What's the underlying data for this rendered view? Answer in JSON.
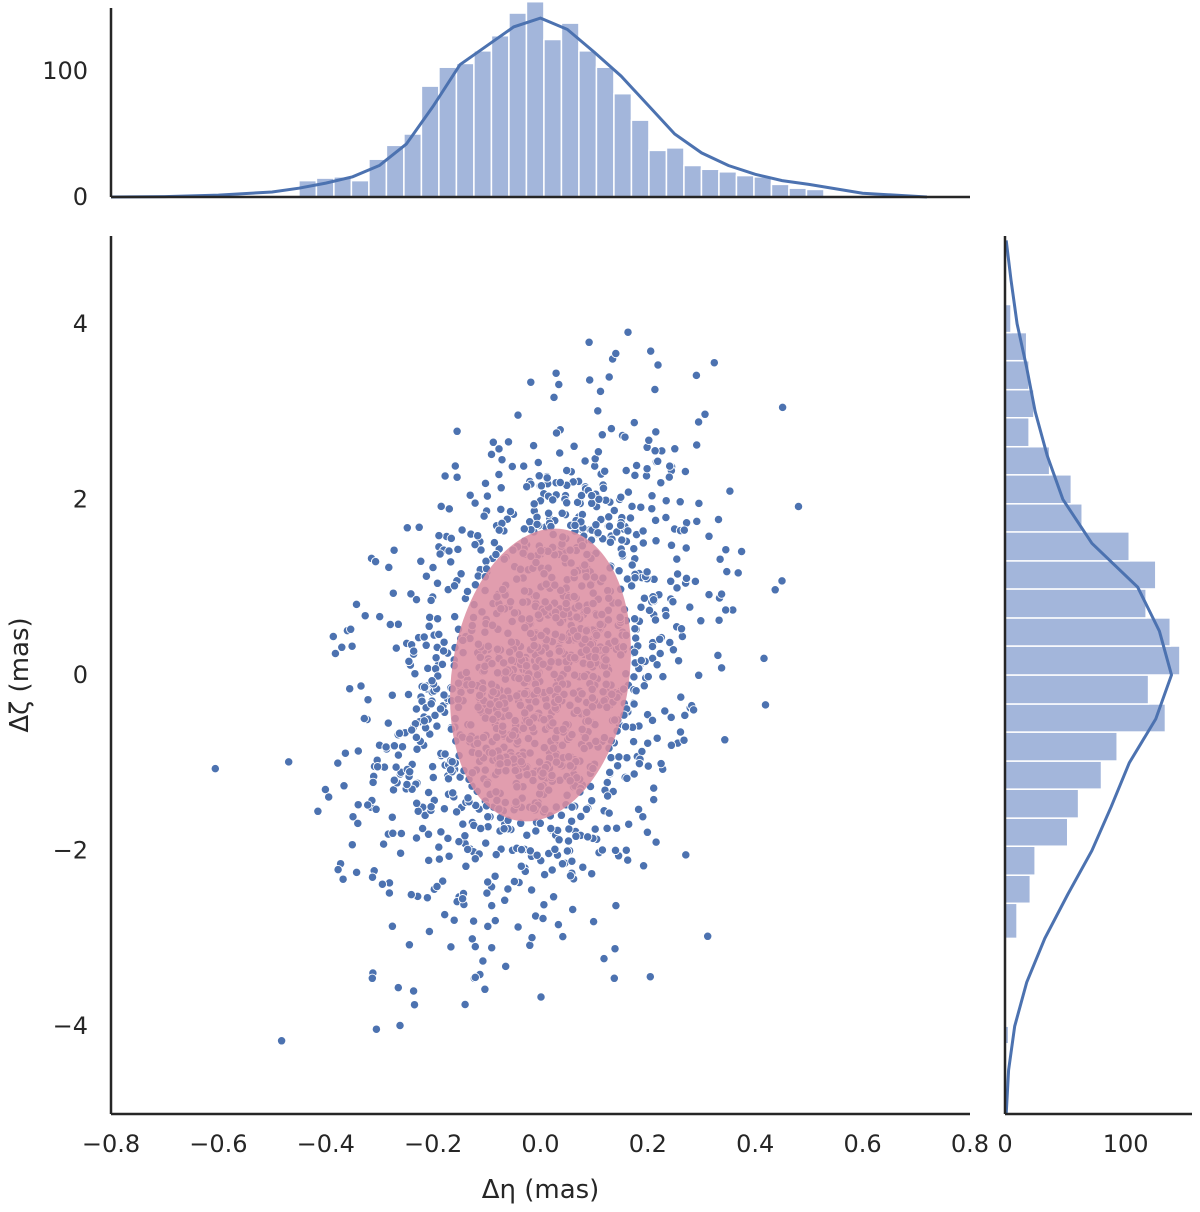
{
  "chart_data": {
    "type": "scatter",
    "subtype": "jointplot",
    "xlabel": "Δη (mas)",
    "ylabel": "Δζ (mas)",
    "xlim": [
      -0.8,
      0.8
    ],
    "ylim": [
      -5,
      5
    ],
    "xticks": [
      -0.8,
      -0.6,
      -0.4,
      -0.2,
      0.0,
      0.2,
      0.4,
      0.6,
      0.8
    ],
    "xtick_labels": [
      "−0.8",
      "−0.6",
      "−0.4",
      "−0.2",
      "0.0",
      "0.2",
      "0.4",
      "0.6",
      "0.8"
    ],
    "yticks": [
      4,
      2,
      0,
      -2,
      -4
    ],
    "ytick_labels": [
      "4",
      "2",
      "0",
      "−2",
      "−4"
    ],
    "grid": false,
    "colors": {
      "points": "#4c72b0",
      "point_edge": "#ffffff",
      "histogram": "#a3b6db",
      "kde": "#4c72b0",
      "ellipse": "#dc8ca0"
    },
    "scatter_series": {
      "n_points": 1500,
      "x_mean": 0.0,
      "x_std": 0.15,
      "y_mean": 0.0,
      "y_std": 1.4,
      "correlation": 0.3
    },
    "covariance_ellipse": {
      "center": [
        0.0,
        0.0
      ],
      "x_half_width": 0.165,
      "y_half_height": 1.68,
      "tilt_fraction": 0.26,
      "opacity": 0.85
    },
    "top_marginal": {
      "type": "histogram+kde",
      "ylim": [
        0,
        150
      ],
      "yticks": [
        0,
        100
      ],
      "ytick_labels": [
        "0",
        "100"
      ],
      "bin_edges": [
        -0.45,
        -0.4174,
        -0.3848,
        -0.3522,
        -0.3196,
        -0.287,
        -0.2544,
        -0.2218,
        -0.1892,
        -0.1566,
        -0.124,
        -0.0914,
        -0.0588,
        -0.0262,
        0.0064,
        0.039,
        0.0716,
        0.1042,
        0.1368,
        0.1694,
        0.202,
        0.2346,
        0.2672,
        0.2998,
        0.3324,
        0.365,
        0.3976,
        0.4302,
        0.4628,
        0.4954,
        0.528
      ],
      "counts": [
        13,
        15,
        16,
        13,
        30,
        41,
        50,
        88,
        103,
        106,
        116,
        128,
        146,
        155,
        125,
        138,
        116,
        103,
        82,
        61,
        37,
        39,
        25,
        22,
        20,
        17,
        16,
        10,
        7,
        6
      ],
      "kde_x": [
        -0.8,
        -0.7,
        -0.6,
        -0.5,
        -0.45,
        -0.4,
        -0.35,
        -0.3,
        -0.25,
        -0.2,
        -0.15,
        -0.1,
        -0.05,
        0.0,
        0.05,
        0.1,
        0.15,
        0.2,
        0.25,
        0.3,
        0.35,
        0.4,
        0.45,
        0.5,
        0.6,
        0.72
      ],
      "kde_y": [
        0,
        0.3,
        1.5,
        4,
        7,
        11,
        16,
        25,
        42,
        72,
        105,
        120,
        135,
        142,
        133,
        115,
        96,
        73,
        50,
        35,
        25,
        18,
        13,
        10,
        3,
        0
      ]
    },
    "right_marginal": {
      "type": "histogram+kde",
      "orientation": "horizontal",
      "xlim": [
        0,
        155
      ],
      "xticks": [
        0,
        100
      ],
      "xtick_labels": [
        "0",
        "100"
      ],
      "bin_edges": [
        -4.2,
        -4.0,
        -3.8,
        -3.6,
        -3.4,
        -3.2,
        -3.0,
        -2.6,
        -2.28,
        -1.95,
        -1.63,
        -1.3,
        -0.98,
        -0.65,
        -0.33,
        0.0,
        0.33,
        0.65,
        0.98,
        1.3,
        1.63,
        1.95,
        2.28,
        2.6,
        2.93,
        3.25,
        3.58,
        3.9,
        4.22
      ],
      "counts": [
        3,
        0,
        0,
        0,
        0,
        0,
        10,
        21,
        25,
        52,
        61,
        80,
        93,
        133,
        119,
        145,
        137,
        117,
        125,
        103,
        64,
        55,
        37,
        20,
        24,
        20,
        18,
        5
      ],
      "kde_y": [
        -5,
        -4.5,
        -4,
        -3.5,
        -3,
        -2.5,
        -2,
        -1.5,
        -1,
        -0.5,
        0,
        0.5,
        1,
        1.5,
        2,
        2.5,
        3,
        3.5,
        4,
        4.5,
        4.95
      ],
      "kde_x": [
        1,
        3,
        8,
        18,
        33,
        52,
        72,
        88,
        103,
        125,
        138,
        128,
        110,
        72,
        48,
        35,
        25,
        18,
        10,
        5,
        1
      ]
    }
  }
}
